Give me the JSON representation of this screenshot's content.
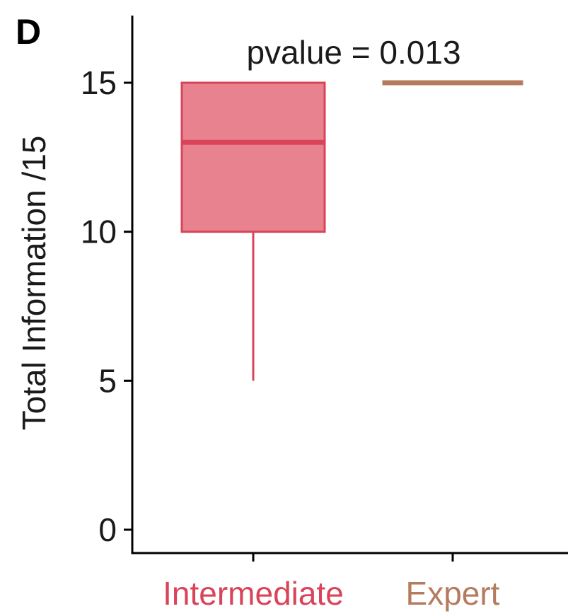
{
  "panel_label": "D",
  "annotation": "pvalue = 0.013",
  "chart_data": {
    "type": "box",
    "title": "",
    "xlabel": "",
    "ylabel": "Total Information /15",
    "ylim": [
      0,
      15
    ],
    "yticks": [
      0,
      5,
      10,
      15
    ],
    "categories": [
      "Intermediate",
      "Expert"
    ],
    "colors": {
      "Intermediate": "#d94459",
      "Expert": "#b47b5f"
    },
    "fill_colors": {
      "Intermediate": "#e8828f",
      "Expert": "#c79a82"
    },
    "boxes": [
      {
        "category": "Intermediate",
        "min": 5,
        "q1": 10,
        "median": 13,
        "q3": 15,
        "max": 15
      },
      {
        "category": "Expert",
        "min": 15,
        "q1": 15,
        "median": 15,
        "q3": 15,
        "max": 15
      }
    ],
    "grid": false,
    "legend": "none"
  }
}
